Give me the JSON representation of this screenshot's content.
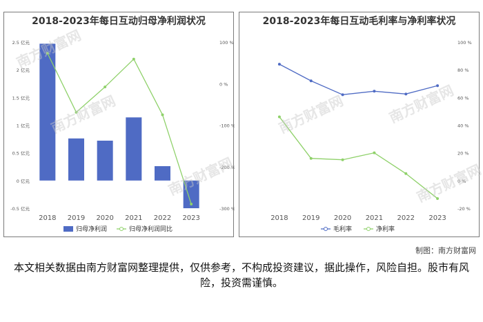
{
  "watermark": "南方财富网",
  "credit": "制图：南方财富网",
  "disclaimer": "本文相关数据由南方财富网整理提供，仅供参考，不构成投资建议，据此操作，风险自担。股市有风险，投资需谨慎。",
  "chart_data": [
    {
      "type": "bar",
      "title": "2018-2023年每日互动归母净利润状况",
      "categories": [
        "2018",
        "2019",
        "2020",
        "2021",
        "2022",
        "2023"
      ],
      "ylim": [
        -0.5,
        2.5
      ],
      "ylim_right": [
        -300,
        100
      ],
      "left_ticks": [
        "2.5 亿元",
        "2 亿元",
        "1.5 亿元",
        "1 亿元",
        "0.5 亿元",
        "0 亿元",
        "-0.5 亿元"
      ],
      "right_ticks": [
        "100 %",
        "0 %",
        "-100 %",
        "-200 %",
        "-300 %"
      ],
      "series": [
        {
          "name": "归母净利润",
          "kind": "bar",
          "axis": "left",
          "color": "#4f6bc4",
          "values": [
            2.47,
            0.76,
            0.72,
            1.14,
            0.26,
            -0.5
          ]
        },
        {
          "name": "归母净利润同比",
          "kind": "line",
          "axis": "right",
          "color": "#8fd16a",
          "values": [
            73,
            -69,
            -8,
            59,
            -75,
            -290
          ]
        }
      ],
      "legend_position": "bottom"
    },
    {
      "type": "line",
      "title": "2018-2023年每日互动毛利率与净利率状况",
      "categories": [
        "2018",
        "2019",
        "2020",
        "2021",
        "2022",
        "2023"
      ],
      "ylim": [
        -20,
        100
      ],
      "right_ticks": [
        "100 %",
        "80 %",
        "60 %",
        "40 %",
        "20 %",
        "0 %",
        "-20 %"
      ],
      "series": [
        {
          "name": "毛利率",
          "color": "#4f6bc4",
          "values": [
            84,
            72,
            62,
            64.5,
            62.5,
            68.5
          ]
        },
        {
          "name": "净利率",
          "color": "#8fd16a",
          "values": [
            46,
            16,
            15,
            20,
            5,
            -13
          ]
        }
      ],
      "legend_position": "bottom"
    }
  ]
}
